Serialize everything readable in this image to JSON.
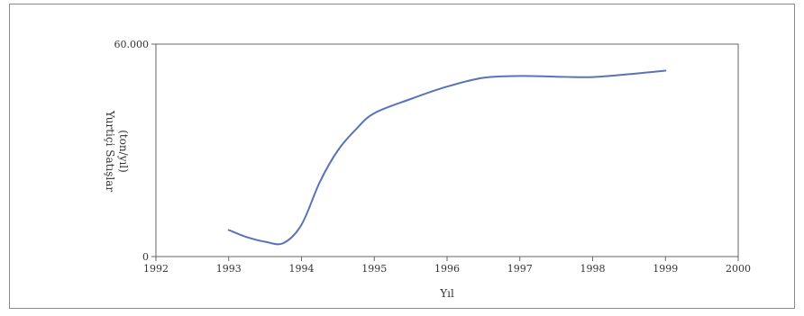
{
  "chart_data": {
    "type": "line",
    "title": "",
    "xlabel": "Yıl",
    "ylabel_lines": [
      "Yurtiçi Satışlar",
      "(ton/yıl)"
    ],
    "xlim": [
      1992,
      2000
    ],
    "ylim": [
      0,
      60000
    ],
    "x_ticks": [
      1992,
      1993,
      1994,
      1995,
      1996,
      1997,
      1998,
      1999,
      2000
    ],
    "x_tick_labels": [
      "1992",
      "1993",
      "1994",
      "1995",
      "1996",
      "1997",
      "1998",
      "1999",
      "2000"
    ],
    "y_ticks": [
      0,
      60000
    ],
    "y_tick_labels": [
      "0",
      "60.000"
    ],
    "grid": false,
    "legend": "none",
    "series": [
      {
        "color": "#5a73b8",
        "points": [
          [
            1993.0,
            7500
          ],
          [
            1993.25,
            5500
          ],
          [
            1993.5,
            4200
          ],
          [
            1993.75,
            3800
          ],
          [
            1994.0,
            9000
          ],
          [
            1994.25,
            21000
          ],
          [
            1994.5,
            30000
          ],
          [
            1994.75,
            36000
          ],
          [
            1995.0,
            40500
          ],
          [
            1995.5,
            44500
          ],
          [
            1996.0,
            48000
          ],
          [
            1996.5,
            50500
          ],
          [
            1997.0,
            51000
          ],
          [
            1997.5,
            50800
          ],
          [
            1998.0,
            50700
          ],
          [
            1998.5,
            51500
          ],
          [
            1999.0,
            52500
          ]
        ]
      }
    ]
  }
}
